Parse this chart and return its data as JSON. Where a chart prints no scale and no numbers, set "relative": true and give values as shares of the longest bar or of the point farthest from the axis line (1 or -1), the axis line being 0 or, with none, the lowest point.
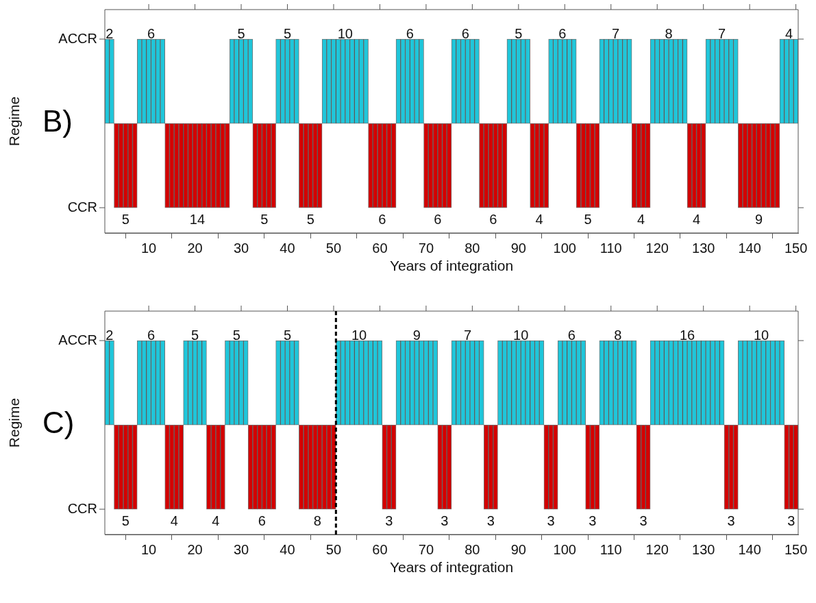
{
  "chart_data": [
    {
      "type": "bar",
      "title": "B)",
      "xlabel": "Years of integration",
      "ylabel": "Regime",
      "x": [
        1,
        2,
        3,
        4,
        5,
        6,
        7,
        8,
        9,
        10,
        11,
        12,
        13,
        14,
        15,
        16,
        17,
        18,
        19,
        20,
        21,
        22,
        23,
        24,
        25,
        26,
        27,
        28,
        29,
        30,
        31,
        32,
        33,
        34,
        35,
        36,
        37,
        38,
        39,
        40,
        41,
        42,
        43,
        44,
        45,
        46,
        47,
        48,
        49,
        50,
        51,
        52,
        53,
        54,
        55,
        56,
        57,
        58,
        59,
        60,
        61,
        62,
        63,
        64,
        65,
        66,
        67,
        68,
        69,
        70,
        71,
        72,
        73,
        74,
        75,
        76,
        77,
        78,
        79,
        80,
        81,
        82,
        83,
        84,
        85,
        86,
        87,
        88,
        89,
        90,
        91,
        92,
        93,
        94,
        95,
        96,
        97,
        98,
        99,
        100,
        101,
        102,
        103,
        104,
        105,
        106,
        107,
        108,
        109,
        110,
        111,
        112,
        113,
        114,
        115,
        116,
        117,
        118,
        119,
        120,
        121,
        122,
        123,
        124,
        125,
        126,
        127,
        128,
        129,
        130,
        131,
        132,
        133,
        134,
        135,
        136,
        137,
        138,
        139,
        140,
        141,
        142,
        143,
        144,
        145,
        146,
        147,
        148,
        149,
        150
      ],
      "series": [
        {
          "name": "ACCR",
          "color": "#1fc6da",
          "values": [
            1,
            1,
            null,
            null,
            null,
            null,
            null,
            1,
            1,
            1,
            1,
            1,
            1,
            null,
            null,
            null,
            null,
            null,
            null,
            null,
            null,
            null,
            null,
            null,
            null,
            null,
            null,
            1,
            1,
            1,
            1,
            1,
            null,
            null,
            null,
            null,
            null,
            1,
            1,
            1,
            1,
            1,
            null,
            null,
            null,
            null,
            null,
            1,
            1,
            1,
            1,
            1,
            1,
            1,
            1,
            1,
            1,
            null,
            null,
            null,
            null,
            null,
            null,
            1,
            1,
            1,
            1,
            1,
            1,
            null,
            null,
            null,
            null,
            null,
            null,
            1,
            1,
            1,
            1,
            1,
            1,
            null,
            null,
            null,
            null,
            null,
            null,
            1,
            1,
            1,
            1,
            1,
            null,
            null,
            null,
            null,
            1,
            1,
            1,
            1,
            1,
            1,
            null,
            null,
            null,
            null,
            null,
            1,
            1,
            1,
            1,
            1,
            1,
            1,
            null,
            null,
            null,
            null,
            1,
            1,
            1,
            1,
            1,
            1,
            1,
            1,
            null,
            null,
            null,
            null,
            1,
            1,
            1,
            1,
            1,
            1,
            1,
            null,
            null,
            null,
            null,
            null,
            null,
            null,
            null,
            null,
            1,
            1,
            1,
            1
          ]
        },
        {
          "name": "CCR",
          "color": "#d40000",
          "values": [
            null,
            null,
            -1,
            -1,
            -1,
            -1,
            -1,
            null,
            null,
            null,
            null,
            null,
            null,
            -1,
            -1,
            -1,
            -1,
            -1,
            -1,
            -1,
            -1,
            -1,
            -1,
            -1,
            -1,
            -1,
            -1,
            null,
            null,
            null,
            null,
            null,
            -1,
            -1,
            -1,
            -1,
            -1,
            null,
            null,
            null,
            null,
            null,
            -1,
            -1,
            -1,
            -1,
            -1,
            null,
            null,
            null,
            null,
            null,
            null,
            null,
            null,
            null,
            null,
            -1,
            -1,
            -1,
            -1,
            -1,
            -1,
            null,
            null,
            null,
            null,
            null,
            null,
            -1,
            -1,
            -1,
            -1,
            -1,
            -1,
            null,
            null,
            null,
            null,
            null,
            null,
            -1,
            -1,
            -1,
            -1,
            -1,
            -1,
            null,
            null,
            null,
            null,
            null,
            -1,
            -1,
            -1,
            -1,
            null,
            null,
            null,
            null,
            null,
            null,
            -1,
            -1,
            -1,
            -1,
            -1,
            null,
            null,
            null,
            null,
            null,
            null,
            null,
            -1,
            -1,
            -1,
            -1,
            null,
            null,
            null,
            null,
            null,
            null,
            null,
            null,
            -1,
            -1,
            -1,
            -1,
            null,
            null,
            null,
            null,
            null,
            null,
            null,
            -1,
            -1,
            -1,
            -1,
            -1,
            -1,
            -1,
            -1,
            -1,
            null,
            null,
            null,
            null
          ]
        }
      ],
      "xlim": [
        0.5,
        150.5
      ],
      "xticks": [
        10,
        20,
        30,
        40,
        50,
        60,
        70,
        80,
        90,
        100,
        110,
        120,
        130,
        140,
        150
      ],
      "relative": true,
      "annotations": [
        {
          "text": "2",
          "x": 1.5,
          "y": 1
        },
        {
          "text": "5",
          "x": 5,
          "y": -1
        },
        {
          "text": "6",
          "x": 10.5,
          "y": 1
        },
        {
          "text": "14",
          "x": 20.5,
          "y": -1
        },
        {
          "text": "5",
          "x": 30,
          "y": 1
        },
        {
          "text": "5",
          "x": 35,
          "y": -1
        },
        {
          "text": "5",
          "x": 40,
          "y": 1
        },
        {
          "text": "5",
          "x": 45,
          "y": -1
        },
        {
          "text": "10",
          "x": 52.5,
          "y": 1
        },
        {
          "text": "6",
          "x": 60.5,
          "y": -1
        },
        {
          "text": "6",
          "x": 66.5,
          "y": 1
        },
        {
          "text": "6",
          "x": 72.5,
          "y": -1
        },
        {
          "text": "6",
          "x": 78.5,
          "y": 1
        },
        {
          "text": "6",
          "x": 84.5,
          "y": -1
        },
        {
          "text": "5",
          "x": 90,
          "y": 1
        },
        {
          "text": "4",
          "x": 94.5,
          "y": -1
        },
        {
          "text": "6",
          "x": 99.5,
          "y": 1
        },
        {
          "text": "5",
          "x": 105,
          "y": -1
        },
        {
          "text": "7",
          "x": 111,
          "y": 1
        },
        {
          "text": "4",
          "x": 116.5,
          "y": -1
        },
        {
          "text": "8",
          "x": 122.5,
          "y": 1
        },
        {
          "text": "4",
          "x": 128.5,
          "y": -1
        },
        {
          "text": "7",
          "x": 134,
          "y": 1
        },
        {
          "text": "9",
          "x": 142,
          "y": -1
        },
        {
          "text": "4",
          "x": 148.5,
          "y": 1
        }
      ]
    },
    {
      "type": "bar",
      "title": "C)",
      "xlabel": "Years of integration",
      "ylabel": "Regime",
      "x": [
        1,
        2,
        3,
        4,
        5,
        6,
        7,
        8,
        9,
        10,
        11,
        12,
        13,
        14,
        15,
        16,
        17,
        18,
        19,
        20,
        21,
        22,
        23,
        24,
        25,
        26,
        27,
        28,
        29,
        30,
        31,
        32,
        33,
        34,
        35,
        36,
        37,
        38,
        39,
        40,
        41,
        42,
        43,
        44,
        45,
        46,
        47,
        48,
        49,
        50,
        51,
        52,
        53,
        54,
        55,
        56,
        57,
        58,
        59,
        60,
        61,
        62,
        63,
        64,
        65,
        66,
        67,
        68,
        69,
        70,
        71,
        72,
        73,
        74,
        75,
        76,
        77,
        78,
        79,
        80,
        81,
        82,
        83,
        84,
        85,
        86,
        87,
        88,
        89,
        90,
        91,
        92,
        93,
        94,
        95,
        96,
        97,
        98,
        99,
        100,
        101,
        102,
        103,
        104,
        105,
        106,
        107,
        108,
        109,
        110,
        111,
        112,
        113,
        114,
        115,
        116,
        117,
        118,
        119,
        120,
        121,
        122,
        123,
        124,
        125,
        126,
        127,
        128,
        129,
        130,
        131,
        132,
        133,
        134,
        135,
        136,
        137,
        138,
        139,
        140,
        141,
        142,
        143,
        144,
        145,
        146,
        147,
        148,
        149,
        150
      ],
      "series": [
        {
          "name": "ACCR",
          "color": "#1fc6da",
          "values": [
            1,
            1,
            null,
            null,
            null,
            null,
            null,
            1,
            1,
            1,
            1,
            1,
            1,
            null,
            null,
            null,
            null,
            1,
            1,
            1,
            1,
            1,
            null,
            null,
            null,
            null,
            1,
            1,
            1,
            1,
            1,
            null,
            null,
            null,
            null,
            null,
            null,
            1,
            1,
            1,
            1,
            1,
            null,
            null,
            null,
            null,
            null,
            null,
            null,
            null,
            1,
            1,
            1,
            1,
            1,
            1,
            1,
            1,
            1,
            1,
            null,
            null,
            null,
            1,
            1,
            1,
            1,
            1,
            1,
            1,
            1,
            1,
            null,
            null,
            null,
            1,
            1,
            1,
            1,
            1,
            1,
            1,
            null,
            null,
            null,
            1,
            1,
            1,
            1,
            1,
            1,
            1,
            1,
            1,
            1,
            null,
            null,
            null,
            1,
            1,
            1,
            1,
            1,
            1,
            null,
            null,
            null,
            1,
            1,
            1,
            1,
            1,
            1,
            1,
            1,
            null,
            null,
            null,
            1,
            1,
            1,
            1,
            1,
            1,
            1,
            1,
            1,
            1,
            1,
            1,
            1,
            1,
            1,
            1,
            null,
            null,
            null,
            1,
            1,
            1,
            1,
            1,
            1,
            1,
            1,
            1,
            1,
            null,
            null,
            null
          ]
        },
        {
          "name": "CCR",
          "color": "#d40000",
          "values": [
            null,
            null,
            -1,
            -1,
            -1,
            -1,
            -1,
            null,
            null,
            null,
            null,
            null,
            null,
            -1,
            -1,
            -1,
            -1,
            null,
            null,
            null,
            null,
            null,
            -1,
            -1,
            -1,
            -1,
            null,
            null,
            null,
            null,
            null,
            -1,
            -1,
            -1,
            -1,
            -1,
            -1,
            null,
            null,
            null,
            null,
            null,
            -1,
            -1,
            -1,
            -1,
            -1,
            -1,
            -1,
            -1,
            null,
            null,
            null,
            null,
            null,
            null,
            null,
            null,
            null,
            null,
            -1,
            -1,
            -1,
            null,
            null,
            null,
            null,
            null,
            null,
            null,
            null,
            null,
            -1,
            -1,
            -1,
            null,
            null,
            null,
            null,
            null,
            null,
            null,
            -1,
            -1,
            -1,
            null,
            null,
            null,
            null,
            null,
            null,
            null,
            null,
            null,
            null,
            -1,
            -1,
            -1,
            null,
            null,
            null,
            null,
            null,
            null,
            -1,
            -1,
            -1,
            null,
            null,
            null,
            null,
            null,
            null,
            null,
            null,
            -1,
            -1,
            -1,
            null,
            null,
            null,
            null,
            null,
            null,
            null,
            null,
            null,
            null,
            null,
            null,
            null,
            null,
            null,
            null,
            -1,
            -1,
            -1,
            null,
            null,
            null,
            null,
            null,
            null,
            null,
            null,
            null,
            null,
            -1,
            -1,
            -1
          ]
        }
      ],
      "xlim": [
        0.5,
        150.5
      ],
      "xticks": [
        10,
        20,
        30,
        40,
        50,
        60,
        70,
        80,
        90,
        100,
        110,
        120,
        130,
        140,
        150
      ],
      "relative": true,
      "ref_lines": [
        {
          "axis": "x",
          "value": 50.5,
          "color": "#000000",
          "line_style": "dashed"
        }
      ],
      "annotations": [
        {
          "text": "2",
          "x": 1.5,
          "y": 1
        },
        {
          "text": "5",
          "x": 5,
          "y": -1
        },
        {
          "text": "6",
          "x": 10.5,
          "y": 1
        },
        {
          "text": "4",
          "x": 15.5,
          "y": -1
        },
        {
          "text": "5",
          "x": 20,
          "y": 1
        },
        {
          "text": "4",
          "x": 24.5,
          "y": -1
        },
        {
          "text": "5",
          "x": 29,
          "y": 1
        },
        {
          "text": "6",
          "x": 34.5,
          "y": -1
        },
        {
          "text": "5",
          "x": 40,
          "y": 1
        },
        {
          "text": "8",
          "x": 46.5,
          "y": -1
        },
        {
          "text": "10",
          "x": 55.5,
          "y": 1
        },
        {
          "text": "3",
          "x": 62,
          "y": -1
        },
        {
          "text": "9",
          "x": 68,
          "y": 1
        },
        {
          "text": "3",
          "x": 74,
          "y": -1
        },
        {
          "text": "7",
          "x": 79,
          "y": 1
        },
        {
          "text": "3",
          "x": 84,
          "y": -1
        },
        {
          "text": "10",
          "x": 90.5,
          "y": 1
        },
        {
          "text": "3",
          "x": 97,
          "y": -1
        },
        {
          "text": "6",
          "x": 101.5,
          "y": 1
        },
        {
          "text": "3",
          "x": 106,
          "y": -1
        },
        {
          "text": "8",
          "x": 111.5,
          "y": 1
        },
        {
          "text": "3",
          "x": 117,
          "y": -1
        },
        {
          "text": "16",
          "x": 126.5,
          "y": 1
        },
        {
          "text": "3",
          "x": 136,
          "y": -1
        },
        {
          "text": "10",
          "x": 142.5,
          "y": 1
        },
        {
          "text": "3",
          "x": 149,
          "y": -1
        }
      ]
    }
  ]
}
